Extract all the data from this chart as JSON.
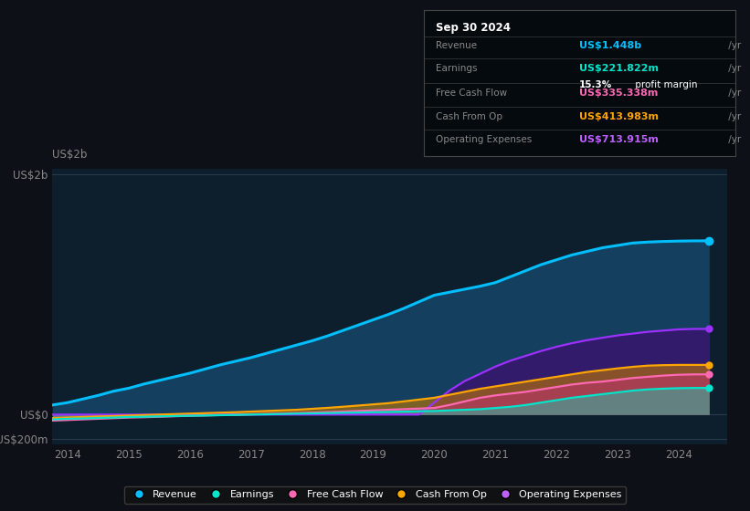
{
  "bg_color": "#0d1117",
  "plot_bg_color": "#0d1f2d",
  "title_box": {
    "date": "Sep 30 2024",
    "rows": [
      {
        "label": "Revenue",
        "value": "US$1.448b",
        "value_color": "#00bfff"
      },
      {
        "label": "Earnings",
        "value": "US$221.822m",
        "value_color": "#00e5cc"
      },
      {
        "label": "",
        "value": "15.3% profit margin",
        "value_color": "#ffffff"
      },
      {
        "label": "Free Cash Flow",
        "value": "US$335.338m",
        "value_color": "#ff69b4"
      },
      {
        "label": "Cash From Op",
        "value": "US$413.983m",
        "value_color": "#ffa500"
      },
      {
        "label": "Operating Expenses",
        "value": "US$713.915m",
        "value_color": "#bf5fff"
      }
    ]
  },
  "years": [
    2013.75,
    2014,
    2014.25,
    2014.5,
    2014.75,
    2015,
    2015.25,
    2015.5,
    2015.75,
    2016,
    2016.25,
    2016.5,
    2016.75,
    2017,
    2017.25,
    2017.5,
    2017.75,
    2018,
    2018.25,
    2018.5,
    2018.75,
    2019,
    2019.25,
    2019.5,
    2019.75,
    2020,
    2020.25,
    2020.5,
    2020.75,
    2021,
    2021.25,
    2021.5,
    2021.75,
    2022,
    2022.25,
    2022.5,
    2022.75,
    2023,
    2023.25,
    2023.5,
    2023.75,
    2024,
    2024.25,
    2024.5
  ],
  "revenue": [
    80,
    100,
    130,
    160,
    195,
    220,
    255,
    285,
    315,
    345,
    380,
    415,
    445,
    475,
    510,
    545,
    580,
    615,
    655,
    700,
    745,
    790,
    835,
    885,
    940,
    995,
    1020,
    1045,
    1070,
    1100,
    1150,
    1200,
    1250,
    1290,
    1330,
    1360,
    1390,
    1410,
    1430,
    1438,
    1443,
    1446,
    1448,
    1448
  ],
  "earnings": [
    -40,
    -35,
    -32,
    -28,
    -25,
    -20,
    -18,
    -15,
    -12,
    -10,
    -8,
    -5,
    -3,
    0,
    2,
    5,
    8,
    10,
    12,
    15,
    17,
    20,
    22,
    25,
    28,
    30,
    35,
    40,
    45,
    55,
    65,
    80,
    100,
    120,
    140,
    155,
    170,
    185,
    200,
    210,
    216,
    220,
    222,
    222
  ],
  "free_cash_flow": [
    -50,
    -45,
    -40,
    -35,
    -30,
    -25,
    -22,
    -18,
    -14,
    -10,
    -7,
    -4,
    -1,
    2,
    5,
    8,
    12,
    16,
    20,
    25,
    30,
    35,
    40,
    45,
    50,
    55,
    80,
    110,
    140,
    160,
    175,
    190,
    210,
    230,
    250,
    265,
    275,
    290,
    305,
    315,
    325,
    332,
    335,
    335
  ],
  "cash_from_op": [
    -30,
    -25,
    -20,
    -16,
    -12,
    -8,
    -4,
    0,
    4,
    8,
    12,
    16,
    20,
    25,
    30,
    35,
    40,
    48,
    56,
    65,
    75,
    85,
    95,
    110,
    125,
    140,
    165,
    190,
    215,
    235,
    255,
    275,
    295,
    315,
    335,
    355,
    370,
    385,
    398,
    408,
    412,
    414,
    414,
    414
  ],
  "operating_expenses": [
    0,
    0,
    0,
    0,
    0,
    0,
    0,
    0,
    0,
    0,
    0,
    0,
    0,
    0,
    0,
    0,
    0,
    0,
    0,
    0,
    0,
    0,
    0,
    0,
    0,
    100,
    200,
    280,
    340,
    400,
    450,
    490,
    530,
    565,
    595,
    620,
    640,
    660,
    675,
    690,
    700,
    710,
    714,
    714
  ],
  "ylim": [
    -250,
    2050
  ],
  "yticks": [
    -200,
    0,
    2000
  ],
  "ytick_labels": [
    "-US$200m",
    "US$0",
    "US$2b"
  ],
  "xtick_years": [
    2014,
    2015,
    2016,
    2017,
    2018,
    2019,
    2020,
    2021,
    2022,
    2023,
    2024
  ],
  "legend_items": [
    {
      "label": "Revenue",
      "color": "#00bfff"
    },
    {
      "label": "Earnings",
      "color": "#00e5cc"
    },
    {
      "label": "Free Cash Flow",
      "color": "#ff69b4"
    },
    {
      "label": "Cash From Op",
      "color": "#ffa500"
    },
    {
      "label": "Operating Expenses",
      "color": "#bf5fff"
    }
  ],
  "line_colors": {
    "revenue": "#00bfff",
    "earnings": "#00e5cc",
    "free_cash_flow": "#ff69b4",
    "cash_from_op": "#ffa500",
    "operating_expenses": "#9b30ff"
  },
  "fill_colors": {
    "revenue": "#1a5a8a",
    "earnings": "#00e5cc",
    "free_cash_flow": "#c03070",
    "cash_from_op": "#c07800",
    "operating_expenses": "#3d1070"
  }
}
